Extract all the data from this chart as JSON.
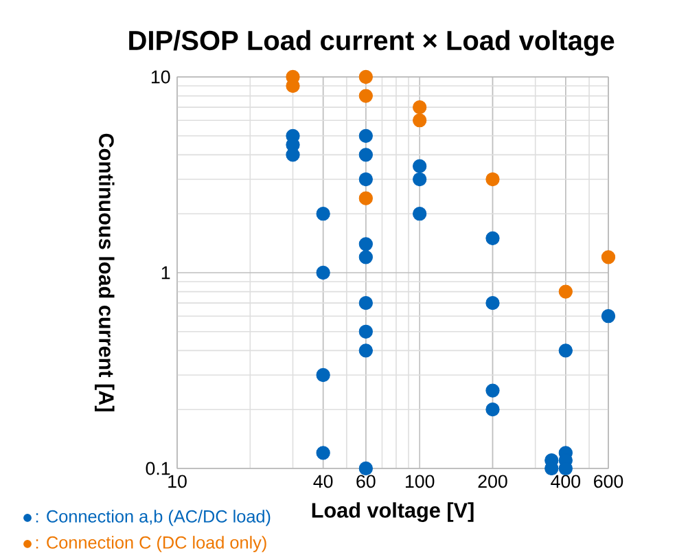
{
  "chart_data": {
    "type": "scatter",
    "title": "DIP/SOP Load current × Load voltage",
    "xlabel": "Load voltage [V]",
    "ylabel": "Continuous load current [A]",
    "log": "xy",
    "xlim": [
      10,
      600
    ],
    "ylim": [
      0.1,
      10
    ],
    "xticks": [
      10,
      40,
      60,
      100,
      200,
      400,
      600
    ],
    "yticks": [
      0.1,
      1,
      10
    ],
    "grid": true,
    "legend": "bottom left",
    "marker": "circle",
    "series": [
      {
        "name": ": Connection a,b (AC/DC load)",
        "color": "#0066bb",
        "x": [
          30,
          30,
          30,
          40,
          40,
          40,
          40,
          60,
          60,
          60,
          60,
          60,
          60,
          60,
          60,
          60,
          100,
          100,
          100,
          200,
          200,
          200,
          200,
          400,
          400,
          400,
          400,
          350,
          350,
          600
        ],
        "values": [
          5,
          4.5,
          4,
          2,
          1,
          0.3,
          0.12,
          5,
          4,
          3,
          1.4,
          1.2,
          0.7,
          0.5,
          0.4,
          0.1,
          3.5,
          3,
          2,
          1.5,
          0.7,
          0.25,
          0.2,
          0.4,
          0.12,
          0.11,
          0.1,
          0.11,
          0.1,
          0.6
        ]
      },
      {
        "name": ": Connection C (DC load only)",
        "color": "#ee7700",
        "x": [
          30,
          30,
          60,
          60,
          60,
          100,
          100,
          200,
          400,
          600
        ],
        "values": [
          10,
          9,
          10,
          8,
          2.4,
          7,
          6,
          3,
          0.8,
          1.2
        ]
      }
    ]
  }
}
